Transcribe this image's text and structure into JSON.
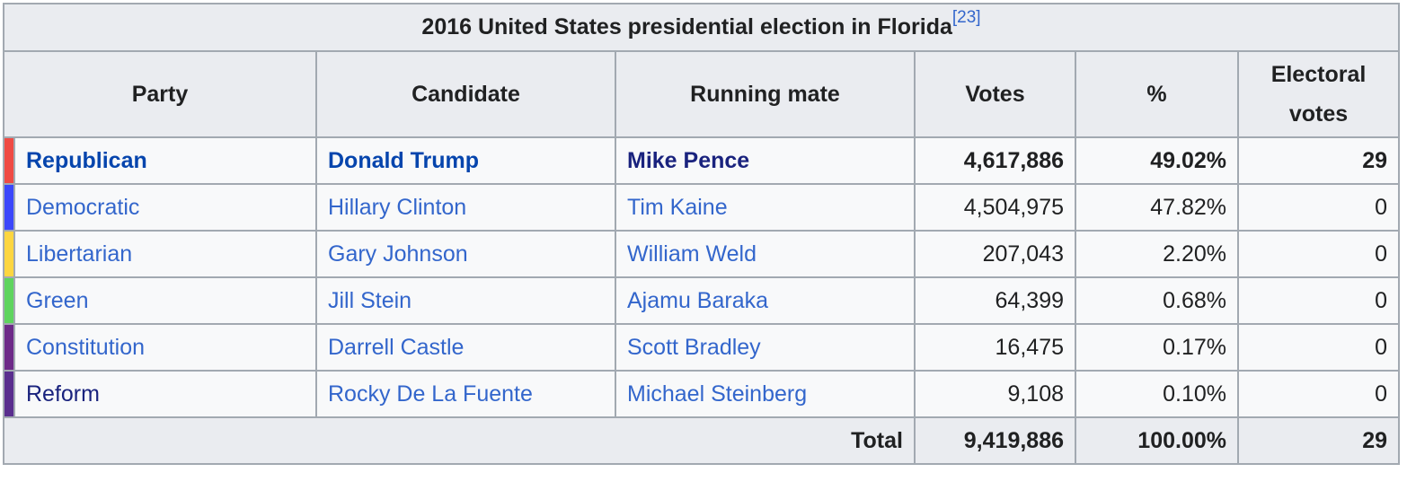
{
  "caption": {
    "title": "2016 United States presidential election in Florida",
    "ref": "[23]"
  },
  "columns": {
    "party": "Party",
    "candidate": "Candidate",
    "running_mate": "Running mate",
    "votes": "Votes",
    "pct": "%",
    "electoral_line1": "Electoral",
    "electoral_line2": "votes"
  },
  "rows": [
    {
      "color": "#ef4b44",
      "party": "Republican",
      "candidate": "Donald Trump",
      "running_mate": "Mike Pence",
      "votes": "4,617,886",
      "pct": "49.02%",
      "electoral": "29"
    },
    {
      "color": "#3b47fb",
      "party": "Democratic",
      "candidate": "Hillary Clinton",
      "running_mate": "Tim Kaine",
      "votes": "4,504,975",
      "pct": "47.82%",
      "electoral": "0"
    },
    {
      "color": "#fdd640",
      "party": "Libertarian",
      "candidate": "Gary Johnson",
      "running_mate": "William Weld",
      "votes": "207,043",
      "pct": "2.20%",
      "electoral": "0"
    },
    {
      "color": "#5ed45e",
      "party": "Green",
      "candidate": "Jill Stein",
      "running_mate": "Ajamu Baraka",
      "votes": "64,399",
      "pct": "0.68%",
      "electoral": "0"
    },
    {
      "color": "#6d2a88",
      "party": "Constitution",
      "candidate": "Darrell Castle",
      "running_mate": "Scott Bradley",
      "votes": "16,475",
      "pct": "0.17%",
      "electoral": "0"
    },
    {
      "color": "#5a2e8e",
      "party": "Reform",
      "candidate": "Rocky De La Fuente",
      "running_mate": "Michael Steinberg",
      "votes": "9,108",
      "pct": "0.10%",
      "electoral": "0"
    }
  ],
  "total": {
    "label": "Total",
    "votes": "9,419,886",
    "pct": "100.00%",
    "electoral": "29"
  }
}
